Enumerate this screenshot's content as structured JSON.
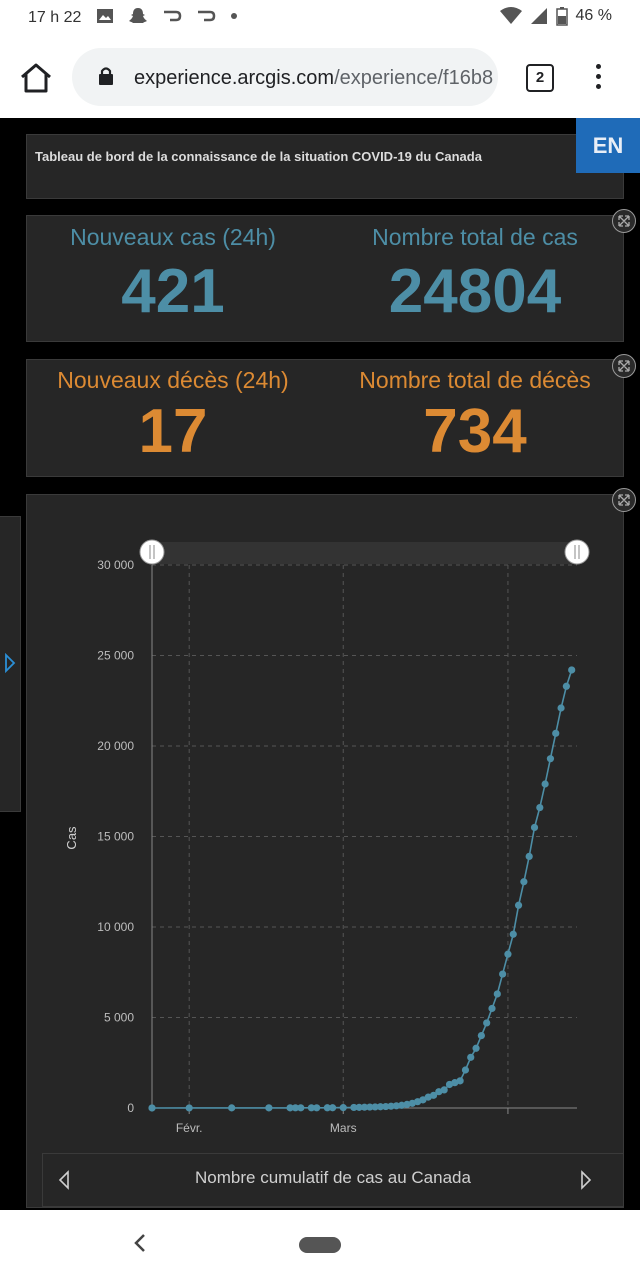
{
  "status_bar": {
    "time": "17 h 22",
    "battery": "46 %"
  },
  "browser": {
    "url_host": "experience.arcgis.com",
    "url_path": "/experience/f16b8",
    "tab_count": "2"
  },
  "dashboard": {
    "title": "Tableau de bord de la connaissance de la situation COVID-19 du Canada",
    "lang_button": "EN",
    "cases": {
      "new_label": "Nouveaux cas (24h)",
      "new_value": "421",
      "total_label": "Nombre total de cas",
      "total_value": "24804"
    },
    "deaths": {
      "new_label": "Nouveaux décès (24h)",
      "new_value": "17",
      "total_label": "Nombre total de décès",
      "total_value": "734"
    },
    "chart_title": "Nombre cumulatif de cas au Canada"
  },
  "colors": {
    "cases": "#4d8ea6",
    "deaths": "#dc8a33",
    "lang_button": "#1f6bb8",
    "panel": "#262626"
  },
  "chart_data": {
    "type": "line",
    "ylabel": "Cas",
    "xlabel": "",
    "ylim": [
      0,
      30000
    ],
    "yticks": [
      "0",
      "5 000",
      "10 000",
      "15 000",
      "20 000",
      "25 000",
      "30 000"
    ],
    "ytick_values": [
      0,
      5000,
      10000,
      15000,
      20000,
      25000,
      30000
    ],
    "xticks": [
      {
        "label": "Févr.",
        "date": "2020-02-01"
      },
      {
        "label": "Mars",
        "date": "2020-03-01"
      }
    ],
    "xlim": [
      "2020-01-25",
      "2020-04-14"
    ],
    "grid": true,
    "series": [
      {
        "x": [
          "2020-01-25",
          "2020-02-01",
          "2020-02-09",
          "2020-02-16",
          "2020-02-20",
          "2020-02-21",
          "2020-02-22",
          "2020-02-24",
          "2020-02-25",
          "2020-02-27",
          "2020-02-28",
          "2020-03-01",
          "2020-03-03",
          "2020-03-04",
          "2020-03-05",
          "2020-03-06",
          "2020-03-07",
          "2020-03-08",
          "2020-03-09",
          "2020-03-10",
          "2020-03-11",
          "2020-03-12",
          "2020-03-13",
          "2020-03-14",
          "2020-03-15",
          "2020-03-16",
          "2020-03-17",
          "2020-03-18",
          "2020-03-19",
          "2020-03-20",
          "2020-03-21",
          "2020-03-22",
          "2020-03-23",
          "2020-03-24",
          "2020-03-25",
          "2020-03-26",
          "2020-03-27",
          "2020-03-28",
          "2020-03-29",
          "2020-03-30",
          "2020-03-31",
          "2020-04-01",
          "2020-04-02",
          "2020-04-03",
          "2020-04-04",
          "2020-04-05",
          "2020-04-06",
          "2020-04-07",
          "2020-04-08",
          "2020-04-09",
          "2020-04-10",
          "2020-04-11",
          "2020-04-12",
          "2020-04-13"
        ],
        "y": [
          1,
          4,
          7,
          8,
          8,
          9,
          10,
          11,
          11,
          12,
          14,
          20,
          30,
          34,
          45,
          52,
          60,
          70,
          80,
          100,
          120,
          150,
          200,
          260,
          350,
          450,
          600,
          700,
          900,
          1000,
          1300,
          1400,
          1500,
          2100,
          2800,
          3300,
          4000,
          4700,
          5500,
          6300,
          7400,
          8500,
          9600,
          11200,
          12500,
          13900,
          15500,
          16600,
          17900,
          19300,
          20700,
          22100,
          23300,
          24200
        ]
      }
    ]
  }
}
